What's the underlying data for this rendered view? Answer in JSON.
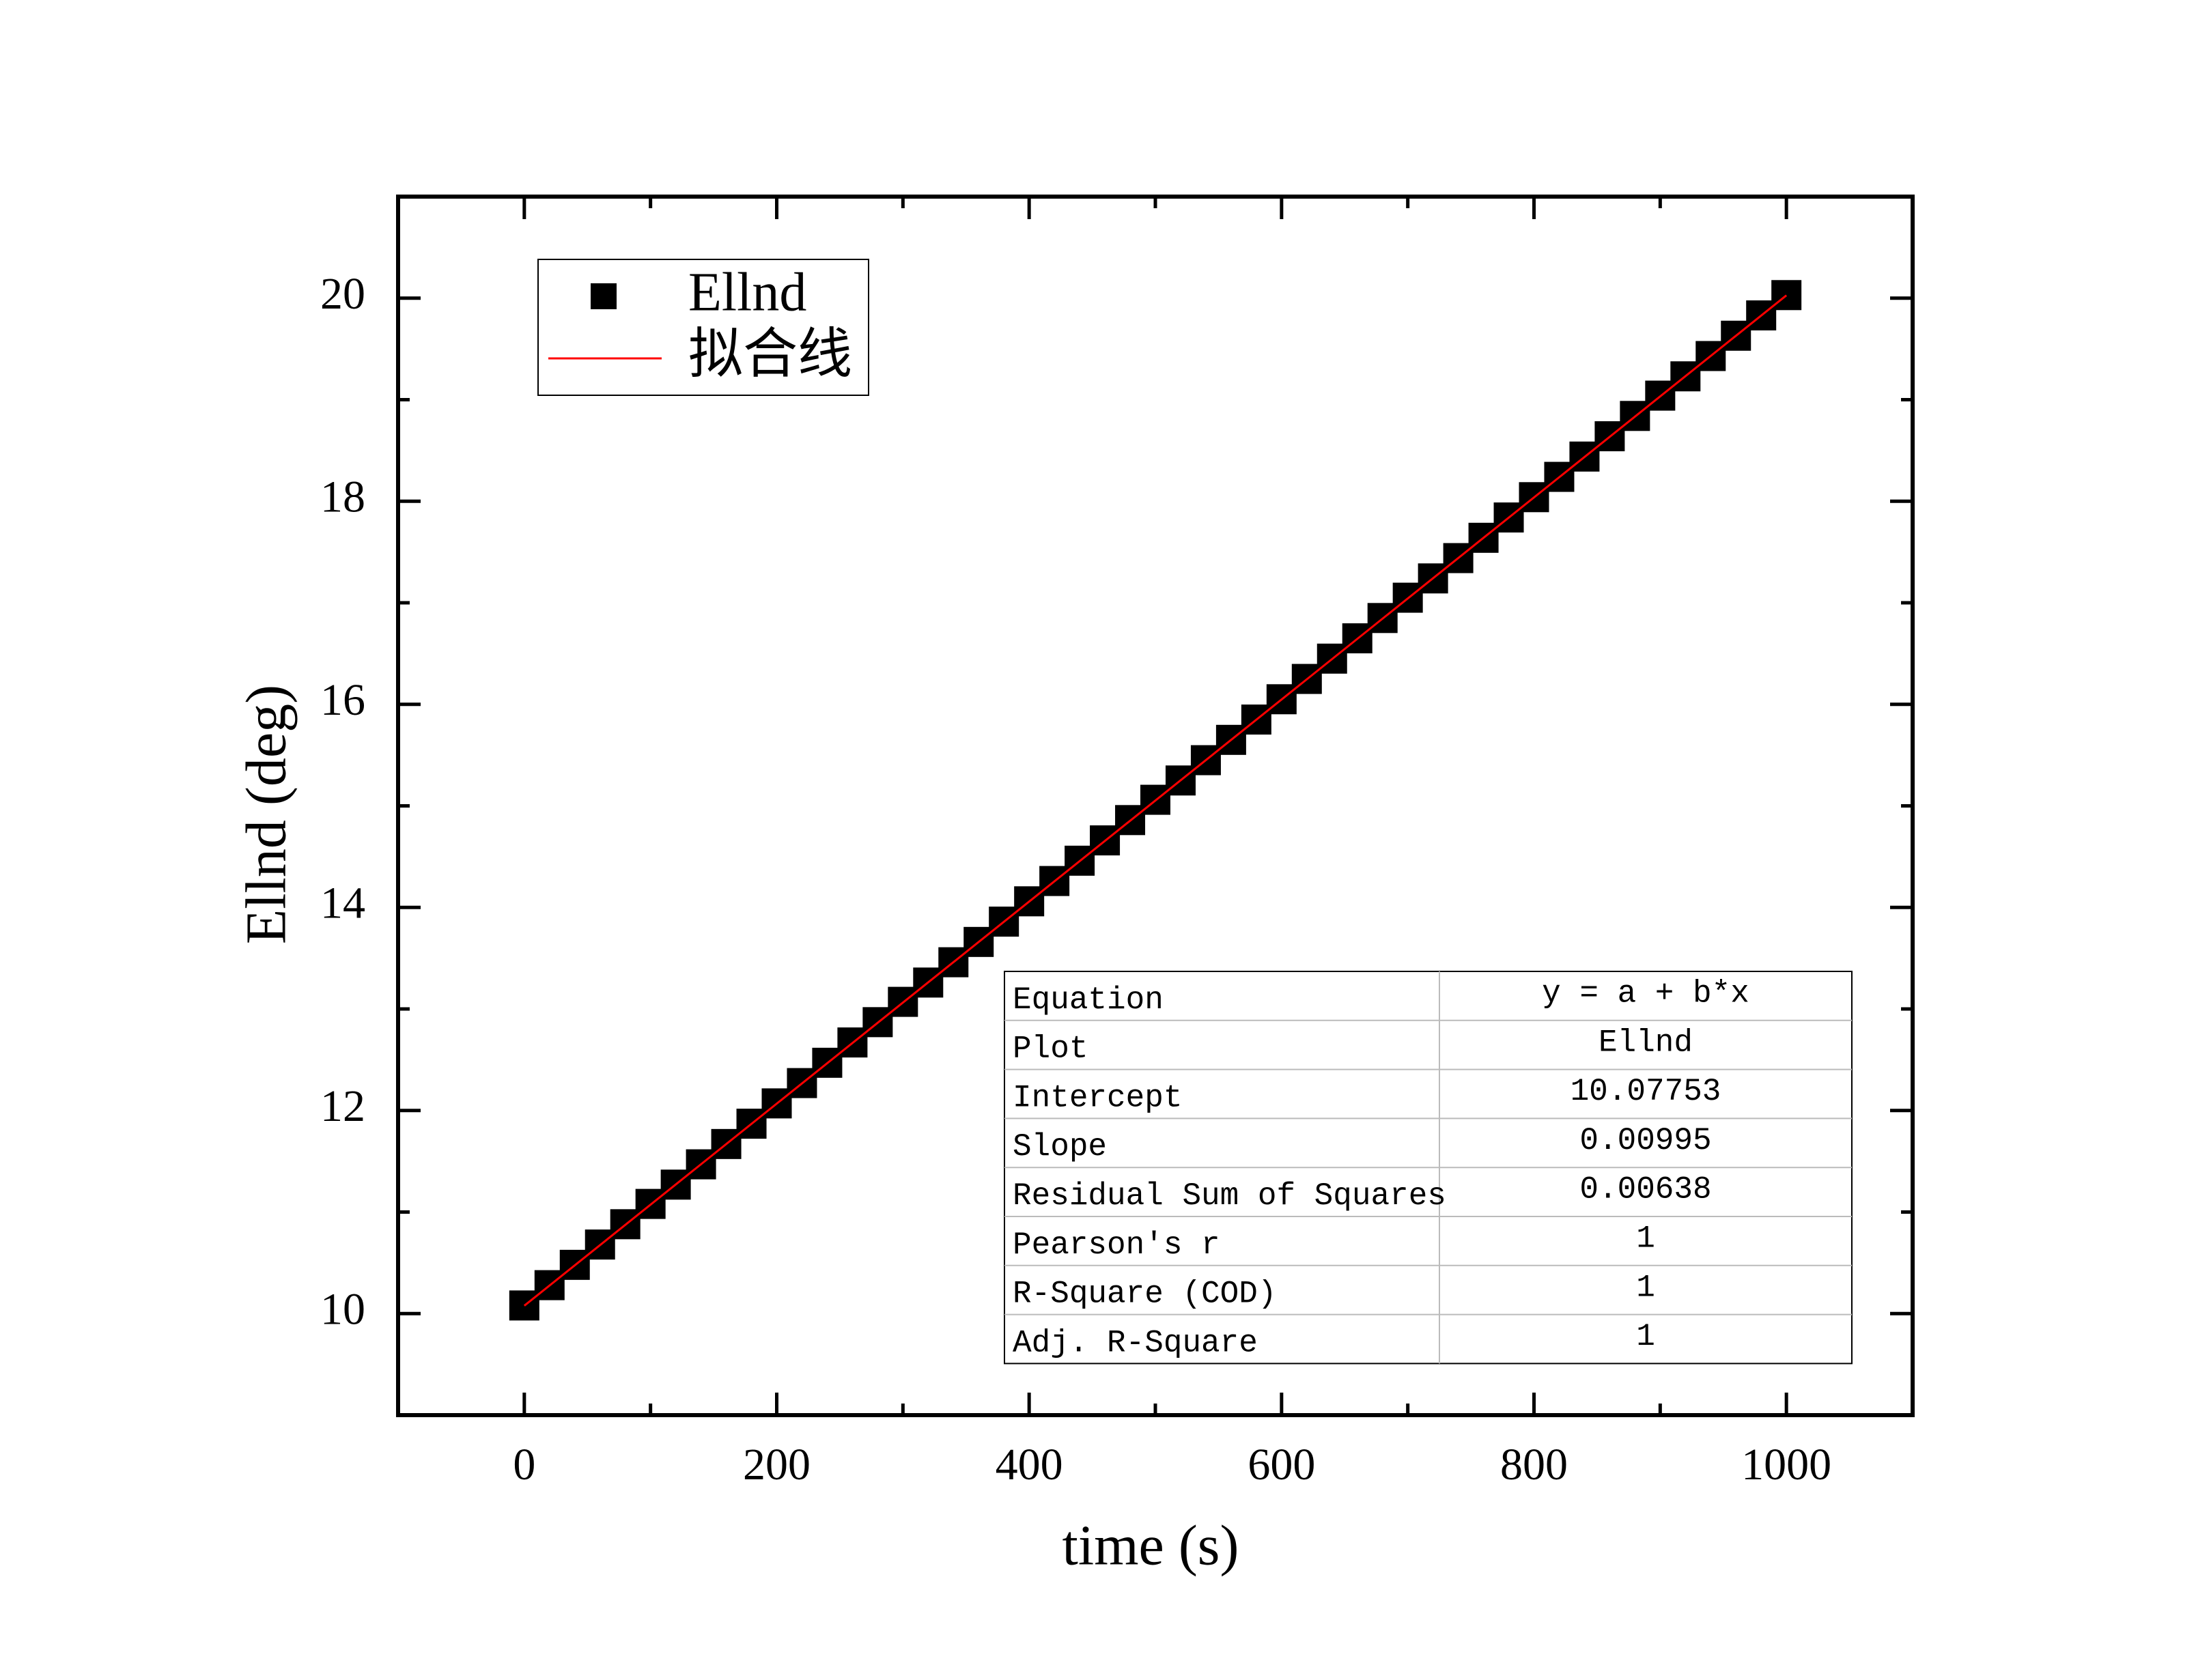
{
  "chart_data": {
    "type": "scatter",
    "xlabel": "time (s)",
    "ylabel": "Ellnd (deg)",
    "x": [
      0,
      20,
      40,
      60,
      80,
      100,
      120,
      140,
      160,
      180,
      200,
      220,
      240,
      260,
      280,
      300,
      320,
      340,
      360,
      380,
      400,
      420,
      440,
      460,
      480,
      500,
      520,
      540,
      560,
      580,
      600,
      620,
      640,
      660,
      680,
      700,
      720,
      740,
      760,
      780,
      800,
      820,
      840,
      860,
      880,
      900,
      920,
      940,
      960,
      980,
      1000
    ],
    "series": [
      {
        "name": "Ellnd",
        "color": "#000000",
        "values": [
          10.08,
          10.28,
          10.48,
          10.68,
          10.88,
          11.08,
          11.27,
          11.47,
          11.67,
          11.87,
          12.07,
          12.27,
          12.47,
          12.67,
          12.87,
          13.07,
          13.26,
          13.46,
          13.66,
          13.86,
          14.06,
          14.26,
          14.46,
          14.66,
          14.86,
          15.06,
          15.25,
          15.45,
          15.65,
          15.85,
          16.05,
          16.25,
          16.45,
          16.65,
          16.85,
          17.05,
          17.24,
          17.44,
          17.64,
          17.84,
          18.04,
          18.24,
          18.44,
          18.64,
          18.84,
          19.04,
          19.23,
          19.43,
          19.63,
          19.83,
          20.03
        ]
      }
    ],
    "fit": {
      "name": "拟合线",
      "color": "#ff0000"
    },
    "xlim": [
      -100,
      1100
    ],
    "ylim": [
      9,
      21
    ],
    "xticks": [
      0,
      200,
      400,
      600,
      800,
      1000
    ],
    "yticks": [
      10,
      12,
      14,
      16,
      18,
      20
    ],
    "fit_table": {
      "rows": [
        [
          "Equation",
          "y = a + b*x"
        ],
        [
          "Plot",
          "Ellnd"
        ],
        [
          "Intercept",
          10.07753
        ],
        [
          "Slope",
          0.00995
        ],
        [
          "Residual Sum of Squares",
          0.00638
        ],
        [
          "Pearson's r",
          1
        ],
        [
          "R-Square (COD)",
          1
        ],
        [
          "Adj. R-Square",
          1
        ]
      ]
    }
  }
}
